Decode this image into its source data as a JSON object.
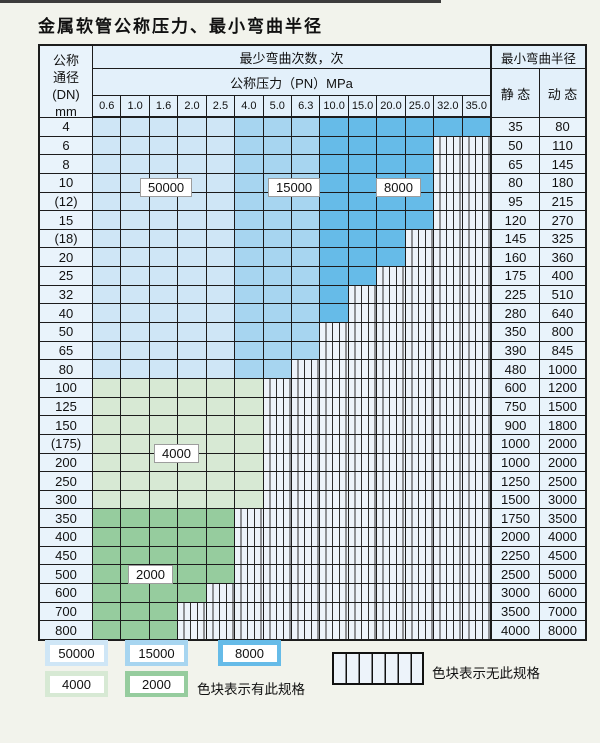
{
  "title": "金属软管公称压力、最小弯曲半径",
  "colors": {
    "blue_50000": "#cfe6f6",
    "blue_15000": "#a7d5f0",
    "blue_8000": "#66bbe8",
    "green_4000": "#d7e9d4",
    "green_2000": "#96cc9e",
    "header_bg": "#e3f0fa",
    "side_bg": "#e9f3fb",
    "hatch_bg": "#edf3fa",
    "grid_line": "#1c1c1c",
    "page_bg": "#f2f3ec"
  },
  "table": {
    "dn_header_lines": [
      "公称",
      "通径",
      "(DN)",
      "mm"
    ],
    "bend_count_header": "最少弯曲次数，次",
    "pressure_header": "公称压力（PN）MPa",
    "radius_header": "最小弯曲半径",
    "static_header": "静 态",
    "dynamic_header": "动 态",
    "pressures": [
      "0.6",
      "1.0",
      "1.6",
      "2.0",
      "2.5",
      "4.0",
      "5.0",
      "6.3",
      "10.0",
      "15.0",
      "20.0",
      "25.0",
      "32.0",
      "35.0"
    ],
    "rows": [
      {
        "dn": "4",
        "colored": 14,
        "band": "blue",
        "static": "35",
        "dynamic": "80"
      },
      {
        "dn": "6",
        "colored": 12,
        "band": "blue",
        "static": "50",
        "dynamic": "110"
      },
      {
        "dn": "8",
        "colored": 12,
        "band": "blue",
        "static": "65",
        "dynamic": "145"
      },
      {
        "dn": "10",
        "colored": 12,
        "band": "blue",
        "static": "80",
        "dynamic": "180"
      },
      {
        "dn": "(12)",
        "colored": 12,
        "band": "blue",
        "static": "95",
        "dynamic": "215"
      },
      {
        "dn": "15",
        "colored": 12,
        "band": "blue",
        "static": "120",
        "dynamic": "270"
      },
      {
        "dn": "(18)",
        "colored": 11,
        "band": "blue",
        "static": "145",
        "dynamic": "325"
      },
      {
        "dn": "20",
        "colored": 11,
        "band": "blue",
        "static": "160",
        "dynamic": "360"
      },
      {
        "dn": "25",
        "colored": 10,
        "band": "blue",
        "static": "175",
        "dynamic": "400"
      },
      {
        "dn": "32",
        "colored": 9,
        "band": "blue",
        "static": "225",
        "dynamic": "510"
      },
      {
        "dn": "40",
        "colored": 9,
        "band": "blue",
        "static": "280",
        "dynamic": "640"
      },
      {
        "dn": "50",
        "colored": 8,
        "band": "blue",
        "static": "350",
        "dynamic": "800"
      },
      {
        "dn": "65",
        "colored": 8,
        "band": "blue",
        "static": "390",
        "dynamic": "845"
      },
      {
        "dn": "80",
        "colored": 7,
        "band": "blue",
        "static": "480",
        "dynamic": "1000"
      },
      {
        "dn": "100",
        "colored": 6,
        "band": "green4000",
        "static": "600",
        "dynamic": "1200"
      },
      {
        "dn": "125",
        "colored": 6,
        "band": "green4000",
        "static": "750",
        "dynamic": "1500"
      },
      {
        "dn": "150",
        "colored": 6,
        "band": "green4000",
        "static": "900",
        "dynamic": "1800"
      },
      {
        "dn": "(175)",
        "colored": 6,
        "band": "green4000",
        "static": "1000",
        "dynamic": "2000"
      },
      {
        "dn": "200",
        "colored": 6,
        "band": "green4000",
        "static": "1000",
        "dynamic": "2000"
      },
      {
        "dn": "250",
        "colored": 6,
        "band": "green4000",
        "static": "1250",
        "dynamic": "2500"
      },
      {
        "dn": "300",
        "colored": 6,
        "band": "green4000",
        "static": "1500",
        "dynamic": "3000"
      },
      {
        "dn": "350",
        "colored": 5,
        "band": "green2000",
        "static": "1750",
        "dynamic": "3500"
      },
      {
        "dn": "400",
        "colored": 5,
        "band": "green2000",
        "static": "2000",
        "dynamic": "4000"
      },
      {
        "dn": "450",
        "colored": 5,
        "band": "green2000",
        "static": "2250",
        "dynamic": "4500"
      },
      {
        "dn": "500",
        "colored": 5,
        "band": "green2000",
        "static": "2500",
        "dynamic": "5000"
      },
      {
        "dn": "600",
        "colored": 4,
        "band": "green2000",
        "static": "3000",
        "dynamic": "6000"
      },
      {
        "dn": "700",
        "colored": 3,
        "band": "green2000",
        "static": "3500",
        "dynamic": "7000"
      },
      {
        "dn": "800",
        "colored": 3,
        "band": "green2000",
        "static": "4000",
        "dynamic": "8000"
      }
    ],
    "region_labels": {
      "r50000": "50000",
      "r15000": "15000",
      "r8000": "8000",
      "r4000": "4000",
      "r2000": "2000"
    }
  },
  "legend": {
    "items": [
      {
        "label": "50000",
        "color_key": "blue_50000"
      },
      {
        "label": "15000",
        "color_key": "blue_15000"
      },
      {
        "label": "8000",
        "color_key": "blue_8000"
      },
      {
        "label": "4000",
        "color_key": "green_4000"
      },
      {
        "label": "2000",
        "color_key": "green_2000"
      }
    ],
    "note_available": "色块表示有此规格",
    "note_unavailable": "色块表示无此规格"
  }
}
